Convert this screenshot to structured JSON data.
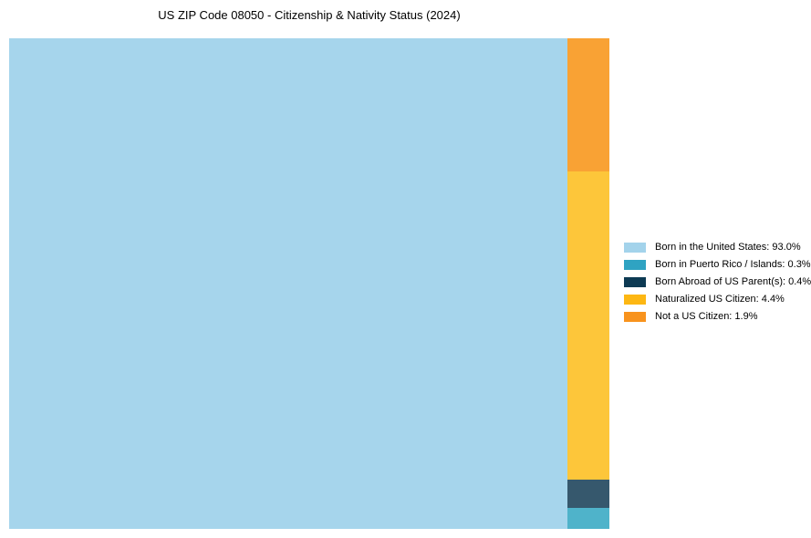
{
  "page": {
    "background": "#ffffff"
  },
  "chart_data": {
    "type": "treemap",
    "title": "US ZIP Code 08050 - Citizenship & Nativity Status (2024)",
    "unit": "%",
    "total": 100,
    "items": [
      {
        "label": "Born in the United States",
        "value": 93.0,
        "block_color": "#a6d5ec",
        "legend_color": "#a3d3eb"
      },
      {
        "label": "Born in Puerto Rico / Islands",
        "value": 0.3,
        "block_color": "#4fb3ca",
        "legend_color": "#2fa3c2"
      },
      {
        "label": "Born Abroad of US Parent(s)",
        "value": 0.4,
        "block_color": "#36586d",
        "legend_color": "#0d3a53"
      },
      {
        "label": "Naturalized US Citizen",
        "value": 4.4,
        "block_color": "#fdc63a",
        "legend_color": "#fdb713"
      },
      {
        "label": "Not a US Citizen",
        "value": 1.9,
        "block_color": "#f9a234",
        "legend_color": "#f8931d"
      }
    ],
    "legend_labels": [
      "Born in the United States: 93.0%",
      "Born in Puerto Rico / Islands: 0.3%",
      "Born Abroad of US Parent(s): 0.4%",
      "Naturalized US Citizen: 4.4%",
      "Not a US Citizen: 1.9%"
    ],
    "layout": {
      "main_item": 0,
      "column_order": [
        4,
        3,
        2,
        1
      ],
      "legend_position": "right",
      "grid": false
    }
  }
}
